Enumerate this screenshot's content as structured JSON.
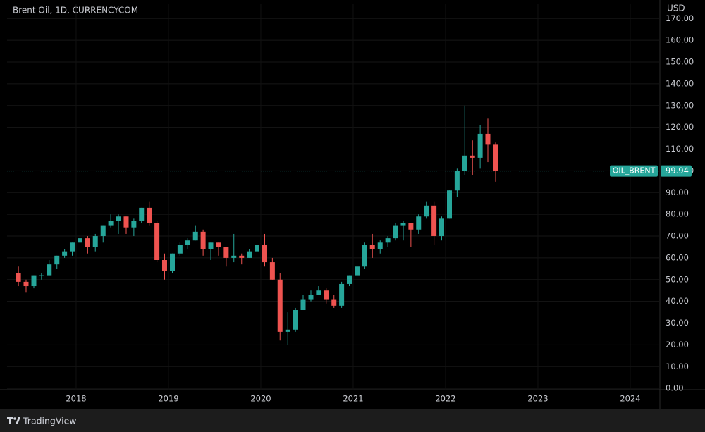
{
  "chart_data": {
    "type": "candlestick",
    "title": "Brent Oil, 1D, CURRENCYCOM",
    "ylabel": "USD",
    "up_color": "#26a69a",
    "down_color": "#ef5350",
    "grid": true,
    "xlim": [
      2017.252,
      2024.313
    ],
    "xticks": [
      2018,
      2019,
      2020,
      2021,
      2022,
      2023,
      2024
    ],
    "ylim": [
      -0.6,
      176.9
    ],
    "yticks": [
      {
        "value": 0,
        "label": "0.00"
      },
      {
        "value": 10,
        "label": "10.00"
      },
      {
        "value": 20,
        "label": "20.00"
      },
      {
        "value": 30,
        "label": "30.00"
      },
      {
        "value": 40,
        "label": "40.00"
      },
      {
        "value": 50,
        "label": "50.00"
      },
      {
        "value": 60,
        "label": "60.00"
      },
      {
        "value": 70,
        "label": "70.00"
      },
      {
        "value": 80,
        "label": "80.00"
      },
      {
        "value": 90,
        "label": "90.00"
      },
      {
        "value": 100,
        "label": "100.00"
      },
      {
        "value": 110,
        "label": "110.00"
      },
      {
        "value": 120,
        "label": "120.00"
      },
      {
        "value": 130,
        "label": "130.00"
      },
      {
        "value": 140,
        "label": "140.00"
      },
      {
        "value": 150,
        "label": "150.00"
      },
      {
        "value": 160,
        "label": "160.00"
      },
      {
        "value": 170,
        "label": "170.00"
      }
    ],
    "x": [
      2017.375,
      2017.458,
      2017.542,
      2017.625,
      2017.708,
      2017.792,
      2017.875,
      2017.958,
      2018.042,
      2018.125,
      2018.208,
      2018.292,
      2018.375,
      2018.458,
      2018.542,
      2018.625,
      2018.708,
      2018.792,
      2018.875,
      2018.958,
      2019.042,
      2019.125,
      2019.208,
      2019.292,
      2019.375,
      2019.458,
      2019.542,
      2019.625,
      2019.708,
      2019.792,
      2019.875,
      2019.958,
      2020.042,
      2020.125,
      2020.208,
      2020.292,
      2020.375,
      2020.458,
      2020.542,
      2020.625,
      2020.708,
      2020.792,
      2020.875,
      2020.958,
      2021.042,
      2021.125,
      2021.208,
      2021.292,
      2021.375,
      2021.458,
      2021.542,
      2021.625,
      2021.708,
      2021.792,
      2021.875,
      2021.958,
      2022.042,
      2022.125,
      2022.208,
      2022.292,
      2022.375,
      2022.458,
      2022.542
    ],
    "open": [
      53,
      49,
      47,
      52,
      52,
      57,
      61,
      63,
      67,
      69,
      65,
      70,
      75,
      77,
      79,
      74,
      77,
      83,
      76,
      59,
      54,
      62,
      66,
      68,
      72,
      64,
      67,
      65,
      60,
      61,
      60,
      63,
      66,
      58,
      50,
      26,
      27,
      36,
      41,
      43,
      45,
      41,
      38,
      48,
      52,
      56,
      66,
      64,
      67,
      69,
      75,
      76,
      73,
      79,
      84,
      70,
      78,
      91,
      100,
      107,
      106,
      117,
      112
    ],
    "high": [
      56,
      50,
      52,
      53,
      59,
      61,
      64,
      67,
      71,
      70,
      71,
      75,
      80,
      80,
      79,
      78,
      83,
      86,
      77,
      62,
      62,
      67,
      69,
      75,
      73,
      67,
      67,
      65,
      71,
      62,
      64,
      68,
      71,
      60,
      53,
      35,
      37,
      43,
      45,
      47,
      46,
      43,
      49,
      52,
      57,
      67,
      71,
      68,
      70,
      76,
      77,
      76,
      80,
      86,
      86,
      79,
      91,
      101,
      130,
      114,
      121,
      124,
      113
    ],
    "low": [
      47,
      44,
      46,
      50,
      52,
      55,
      60,
      61,
      66,
      62,
      63,
      67,
      74,
      71,
      71,
      70,
      76,
      75,
      58,
      50,
      53,
      61,
      64,
      68,
      61,
      59,
      61,
      56,
      58,
      57,
      60,
      63,
      56,
      50,
      22,
      20,
      26,
      36,
      40,
      43,
      39,
      37,
      37,
      47,
      51,
      55,
      60,
      62,
      65,
      68,
      68,
      65,
      71,
      78,
      66,
      68,
      78,
      88,
      98,
      98,
      101,
      104,
      95
    ],
    "close": [
      49,
      47,
      52,
      52,
      57,
      61,
      63,
      67,
      69,
      65,
      70,
      75,
      77,
      79,
      74,
      77,
      83,
      76,
      59,
      54,
      62,
      66,
      68,
      72,
      64,
      67,
      65,
      60,
      61,
      60,
      63,
      66,
      58,
      50,
      26,
      27,
      36,
      41,
      43,
      45,
      41,
      38,
      48,
      52,
      56,
      66,
      64,
      67,
      69,
      75,
      76,
      73,
      79,
      84,
      70,
      78,
      91,
      100,
      107,
      106,
      117,
      112,
      100
    ],
    "last_price": {
      "label": "OIL_BRENT",
      "value": 99.94
    }
  },
  "footer": {
    "brand": "TradingView"
  }
}
